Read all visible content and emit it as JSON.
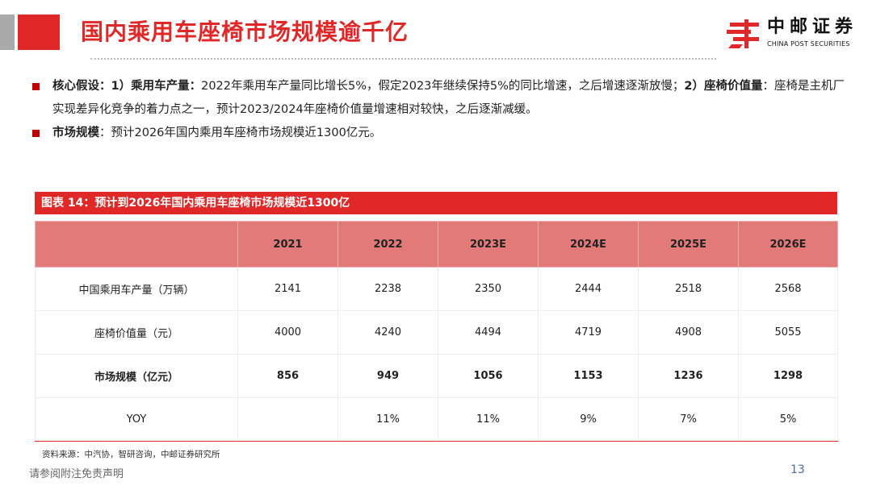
{
  "header": {
    "title": "国内乘用车座椅市场规模逾千亿",
    "logo_cn": "中邮证券",
    "logo_en": "CHINA POST SECURITIES",
    "accent_color": "#e02828"
  },
  "bullets": [
    {
      "b1": "核心假设：1）乘用车产量：",
      "t1": "2022年乘用车产量同比增长5%，假定2023年继续保持5%的同比增速，之后增速逐渐放慢；",
      "b2": "2）座椅价值量",
      "t2": "：座椅是主机厂实现差异化竞争的着力点之一，预计2023/2024年座椅价值量增速相对较快，之后逐渐减缓。"
    },
    {
      "b1": "市场规模",
      "t1": "：预计2026年国内乘用车座椅市场规模近1300亿元。"
    }
  ],
  "figure": {
    "caption": "图表 14：预计到2026年国内乘用车座椅市场规模近1300亿",
    "source": "资料来源：中汽协，智研咨询，中邮证券研究所"
  },
  "chart_data": {
    "type": "table",
    "columns": [
      "",
      "2021",
      "2022",
      "2023E",
      "2024E",
      "2025E",
      "2026E"
    ],
    "rows": [
      {
        "label": "中国乘用车产量（万辆）",
        "values": [
          "2141",
          "2238",
          "2350",
          "2444",
          "2518",
          "2568"
        ],
        "bold": false
      },
      {
        "label": "座椅价值量（元）",
        "values": [
          "4000",
          "4240",
          "4494",
          "4719",
          "4908",
          "5055"
        ],
        "bold": false
      },
      {
        "label": "市场规模（亿元）",
        "values": [
          "856",
          "949",
          "1056",
          "1153",
          "1236",
          "1298"
        ],
        "bold": true
      },
      {
        "label": "YOY",
        "values": [
          "",
          "11%",
          "11%",
          "9%",
          "7%",
          "5%"
        ],
        "bold": false
      }
    ]
  },
  "footer": {
    "disclaimer": "请参阅附注免责声明",
    "page": "13"
  }
}
